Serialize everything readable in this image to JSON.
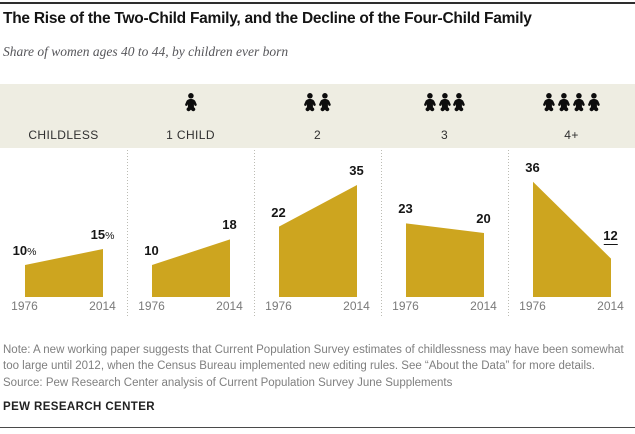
{
  "title": "The Rise of the Two-Child Family, and the Decline of the Four-Child Family",
  "subtitle": "Share of women ages 40 to 44, by children ever born",
  "note": "Note: A new working paper suggests that Current Population Survey estimates of childlessness may have been somewhat too large until 2012, when the Census Bureau implemented new editing rules. See “About the Data” for more details.",
  "source": "Source: Pew Research Center analysis of Current Population Survey June Supplements",
  "footer": "PEW RESEARCH CENTER",
  "colors": {
    "area_gold": "#CDA51F",
    "band_beige": "#EEEDE2",
    "text_dark": "#161616",
    "text_gray": "#7f7f7f"
  },
  "chart_data": {
    "type": "area",
    "title": "The Rise of the Two-Child Family, and the Decline of the Four-Child Family",
    "subtitle": "Share of women ages 40 to 44, by children ever born",
    "x": [
      "1976",
      "2014"
    ],
    "ylim": [
      0,
      45
    ],
    "grid": false,
    "legend": "none",
    "panels": [
      {
        "label": "CHILDLESS",
        "icon_count": 0,
        "values": [
          10,
          15
        ],
        "value_labels": [
          "10%",
          "15%"
        ],
        "show_percent": true,
        "end_label_underline": false
      },
      {
        "label": "1 CHILD",
        "icon_count": 1,
        "values": [
          10,
          18
        ],
        "value_labels": [
          "10",
          "18"
        ],
        "show_percent": false,
        "end_label_underline": false
      },
      {
        "label": "2",
        "icon_count": 2,
        "values": [
          22,
          35
        ],
        "value_labels": [
          "22",
          "35"
        ],
        "show_percent": false,
        "end_label_underline": false
      },
      {
        "label": "3",
        "icon_count": 3,
        "values": [
          23,
          20
        ],
        "value_labels": [
          "23",
          "20"
        ],
        "show_percent": false,
        "end_label_underline": false
      },
      {
        "label": "4+",
        "icon_count": 4,
        "values": [
          36,
          12
        ],
        "value_labels": [
          "36",
          "12"
        ],
        "show_percent": false,
        "end_label_underline": true
      }
    ]
  }
}
